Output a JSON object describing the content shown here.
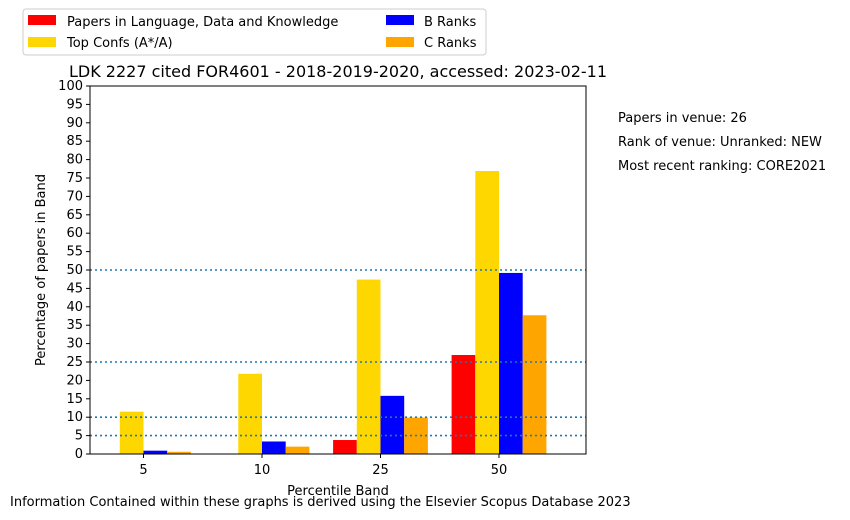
{
  "chart_data": {
    "type": "bar",
    "title": "LDK 2227 cited FOR4601 - 2018-2019-2020, accessed: 2023-02-11",
    "xlabel": "Percentile Band",
    "ylabel": "Percentage of papers in Band",
    "categories": [
      "5",
      "10",
      "25",
      "50"
    ],
    "ylim": [
      0,
      100
    ],
    "yticks": [
      0,
      5,
      10,
      15,
      20,
      25,
      30,
      35,
      40,
      45,
      50,
      55,
      60,
      65,
      70,
      75,
      80,
      85,
      90,
      95,
      100
    ],
    "reference_lines": [
      5,
      10,
      25,
      50
    ],
    "grid": false,
    "legend_position": "top-left, outside plot",
    "series": [
      {
        "name": "Papers in Language, Data and Knowledge",
        "color": "#ff0000",
        "values": [
          0,
          0,
          3.8,
          26.9
        ]
      },
      {
        "name": "Top Confs (A*/A)",
        "color": "#ffd700",
        "values": [
          11.5,
          21.8,
          47.4,
          76.9
        ]
      },
      {
        "name": "B Ranks",
        "color": "#0000ff",
        "values": [
          0.9,
          3.4,
          15.8,
          49.2
        ]
      },
      {
        "name": "C Ranks",
        "color": "#ffa500",
        "values": [
          0.6,
          2.0,
          9.9,
          37.7
        ]
      }
    ]
  },
  "info": {
    "papers_in_venue": "Papers in venue: 26",
    "rank_of_venue": "Rank of venue: Unranked: NEW",
    "most_recent_ranking": "Most recent ranking: CORE2021"
  },
  "footer": "Information Contained within these graphs is derived using the Elsevier Scopus Database 2023"
}
